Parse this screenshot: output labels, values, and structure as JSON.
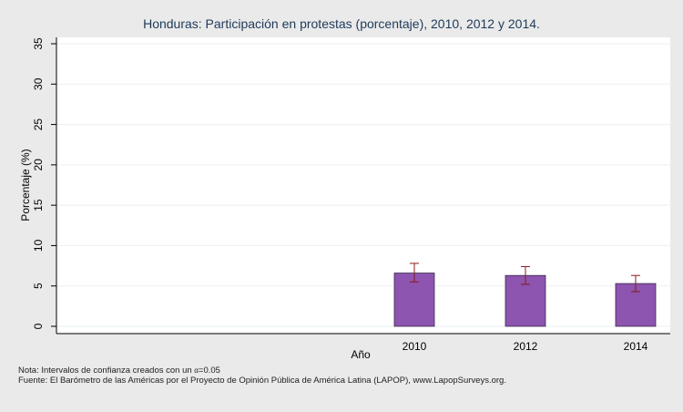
{
  "chart_data": {
    "type": "bar",
    "title": "Honduras: Participación en protestas (porcentaje), 2010, 2012 y 2014.",
    "xlabel": "Año",
    "ylabel": "Porcentaje (%)",
    "ylim": [
      0,
      35
    ],
    "yticks": [
      0,
      5,
      10,
      15,
      20,
      25,
      30,
      35
    ],
    "grid": true,
    "categories": [
      "2010",
      "2012",
      "2014"
    ],
    "values": [
      6.6,
      6.3,
      5.3
    ],
    "ci_low": [
      5.5,
      5.2,
      4.3
    ],
    "ci_high": [
      7.8,
      7.4,
      6.3
    ],
    "bar_color": "#8d54b0",
    "errorbar_color": "#8b1a1a"
  },
  "notes": {
    "line1_prefix": "Nota: Intervalos de confianza creados con un ",
    "alpha_symbol": "α",
    "line1_suffix": "=0.05",
    "line2": "Fuente: El Barómetro de las Américas por el Proyecto de Opinión Pública de América Latina (LAPOP), www.LapopSurveys.org."
  }
}
